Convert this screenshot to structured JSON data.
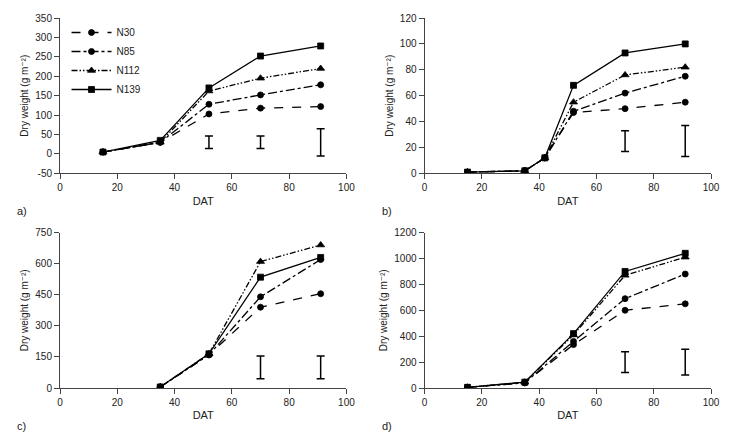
{
  "chart_data": [
    {
      "type": "line",
      "annotations": [
        "a)"
      ],
      "xlabel": "DAT",
      "ylabel": "Dry weight (g m⁻²)",
      "xlim": [
        0,
        100
      ],
      "xticks": [
        0,
        20,
        40,
        60,
        80,
        100
      ],
      "ylim": [
        -50,
        350
      ],
      "yticks": [
        -50,
        0,
        50,
        100,
        150,
        200,
        250,
        300,
        350
      ],
      "grid": false,
      "legend": "upper left",
      "color": "#000000",
      "series": [
        {
          "name": "N30",
          "line_style": "dashed",
          "marker": "circle",
          "x": [
            15,
            35,
            52,
            70,
            91
          ],
          "values": [
            5,
            30,
            103,
            118,
            122
          ]
        },
        {
          "name": "N85",
          "line_style": "dashdot",
          "marker": "circle",
          "x": [
            15,
            35,
            52,
            70,
            91
          ],
          "values": [
            5,
            30,
            128,
            152,
            178
          ]
        },
        {
          "name": "N112",
          "line_style": "dashdotdot",
          "marker": "triangle",
          "x": [
            15,
            35,
            52,
            70,
            91
          ],
          "values": [
            5,
            30,
            162,
            195,
            220
          ]
        },
        {
          "name": "N139",
          "line_style": "solid",
          "marker": "square",
          "x": [
            15,
            35,
            52,
            70,
            91
          ],
          "values": [
            5,
            35,
            170,
            252,
            278
          ]
        }
      ],
      "error_bars": [
        {
          "x": 52,
          "y": 30,
          "yerr": 16
        },
        {
          "x": 70,
          "y": 30,
          "yerr": 16
        },
        {
          "x": 91,
          "y": 30,
          "yerr": 35
        }
      ]
    },
    {
      "type": "line",
      "annotations": [
        "b)"
      ],
      "xlabel": "DAT",
      "ylabel": "Dry weight (g m⁻²)",
      "xlim": [
        0,
        100
      ],
      "xticks": [
        0,
        20,
        40,
        60,
        80,
        100
      ],
      "ylim": [
        0,
        120
      ],
      "yticks": [
        0,
        20,
        40,
        60,
        80,
        100,
        120
      ],
      "grid": false,
      "color": "#000000",
      "series": [
        {
          "name": "N30",
          "line_style": "dashed",
          "marker": "circle",
          "x": [
            15,
            35,
            42,
            52,
            70,
            91
          ],
          "values": [
            1,
            2,
            12,
            47,
            50,
            55
          ]
        },
        {
          "name": "N85",
          "line_style": "dashdot",
          "marker": "circle",
          "x": [
            15,
            35,
            42,
            52,
            70,
            91
          ],
          "values": [
            1,
            2,
            12,
            48,
            62,
            75
          ]
        },
        {
          "name": "N112",
          "line_style": "dashdotdot",
          "marker": "triangle",
          "x": [
            15,
            35,
            42,
            52,
            70,
            91
          ],
          "values": [
            1,
            2,
            12,
            55,
            76,
            82
          ]
        },
        {
          "name": "N139",
          "line_style": "solid",
          "marker": "square",
          "x": [
            15,
            35,
            42,
            52,
            70,
            91
          ],
          "values": [
            1,
            2,
            12,
            68,
            93,
            100
          ]
        }
      ],
      "error_bars": [
        {
          "x": 70,
          "y": 25,
          "yerr": 8
        },
        {
          "x": 91,
          "y": 25,
          "yerr": 12
        }
      ]
    },
    {
      "type": "line",
      "annotations": [
        "c)"
      ],
      "xlabel": "DAT",
      "ylabel": "Dry weight (g m⁻²)",
      "xlim": [
        0,
        100
      ],
      "xticks": [
        0,
        20,
        40,
        60,
        80,
        100
      ],
      "ylim": [
        0,
        750
      ],
      "yticks": [
        0,
        150,
        300,
        450,
        600,
        750
      ],
      "grid": false,
      "color": "#000000",
      "series": [
        {
          "name": "N30",
          "line_style": "dashed",
          "marker": "circle",
          "x": [
            35,
            52,
            70,
            91
          ],
          "values": [
            5,
            160,
            390,
            455
          ]
        },
        {
          "name": "N85",
          "line_style": "dashdot",
          "marker": "circle",
          "x": [
            35,
            52,
            70,
            91
          ],
          "values": [
            5,
            160,
            440,
            620
          ]
        },
        {
          "name": "N112",
          "line_style": "dashdotdot",
          "marker": "triangle",
          "x": [
            35,
            52,
            70,
            91
          ],
          "values": [
            5,
            165,
            610,
            690
          ]
        },
        {
          "name": "N139",
          "line_style": "solid",
          "marker": "square",
          "x": [
            35,
            52,
            70,
            91
          ],
          "values": [
            5,
            165,
            535,
            630
          ]
        }
      ],
      "error_bars": [
        {
          "x": 70,
          "y": 100,
          "yerr": 55
        },
        {
          "x": 91,
          "y": 100,
          "yerr": 55
        }
      ]
    },
    {
      "type": "line",
      "annotations": [
        "d)"
      ],
      "xlabel": "DAT",
      "ylabel": "Dry weight (g m⁻²)",
      "xlim": [
        0,
        100
      ],
      "xticks": [
        0,
        20,
        40,
        60,
        80,
        100
      ],
      "ylim": [
        0,
        1200
      ],
      "yticks": [
        0,
        200,
        400,
        600,
        800,
        1000,
        1200
      ],
      "grid": false,
      "color": "#000000",
      "series": [
        {
          "name": "N30",
          "line_style": "dashed",
          "marker": "circle",
          "x": [
            15,
            35,
            52,
            70,
            91
          ],
          "values": [
            5,
            40,
            335,
            600,
            650
          ]
        },
        {
          "name": "N85",
          "line_style": "dashdot",
          "marker": "circle",
          "x": [
            15,
            35,
            52,
            70,
            91
          ],
          "values": [
            5,
            40,
            360,
            690,
            880
          ]
        },
        {
          "name": "N112",
          "line_style": "dashdotdot",
          "marker": "triangle",
          "x": [
            15,
            35,
            52,
            70,
            91
          ],
          "values": [
            5,
            45,
            410,
            870,
            1010
          ]
        },
        {
          "name": "N139",
          "line_style": "solid",
          "marker": "square",
          "x": [
            15,
            35,
            52,
            70,
            91
          ],
          "values": [
            5,
            45,
            420,
            900,
            1040
          ]
        }
      ],
      "error_bars": [
        {
          "x": 70,
          "y": 200,
          "yerr": 80
        },
        {
          "x": 91,
          "y": 200,
          "yerr": 100
        }
      ]
    }
  ]
}
